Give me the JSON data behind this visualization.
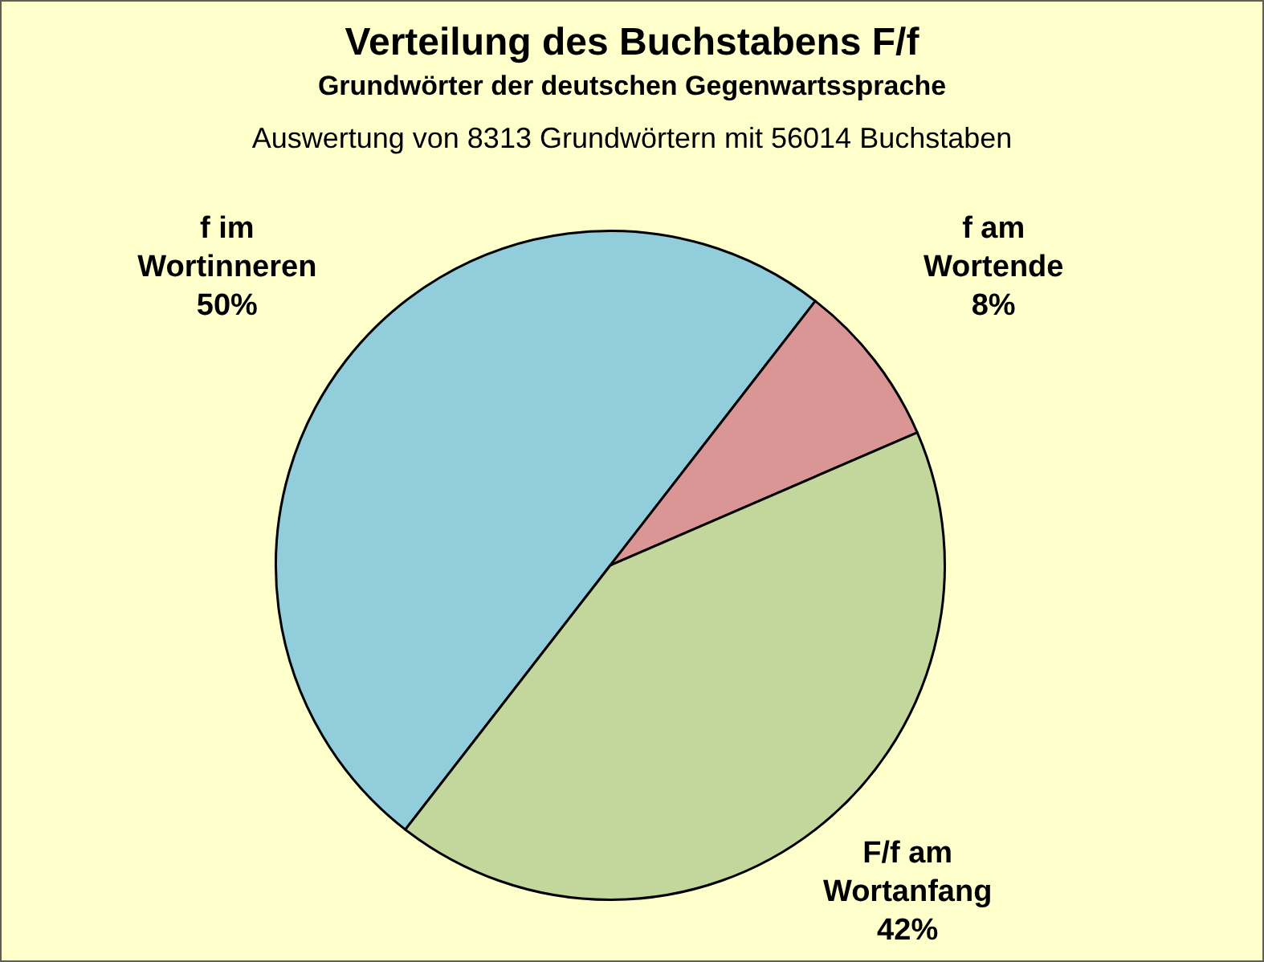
{
  "chart_data": {
    "type": "pie",
    "title": "Verteilung des Buchstabens F/f",
    "subtitle": "Grundwörter der deutschen Gegenwartssprache",
    "annotations": [
      "Auswertung von 8313 Grundwörtern mit 56014 Buchstaben"
    ],
    "categories": [
      "f im Wortinneren",
      "f am Wortende",
      "F/f am Wortanfang"
    ],
    "values": [
      50,
      8,
      42
    ],
    "colors": [
      "#92cddc",
      "#d99694",
      "#c3d69b"
    ],
    "value_labels": [
      "50%",
      "8%",
      "42%"
    ]
  }
}
